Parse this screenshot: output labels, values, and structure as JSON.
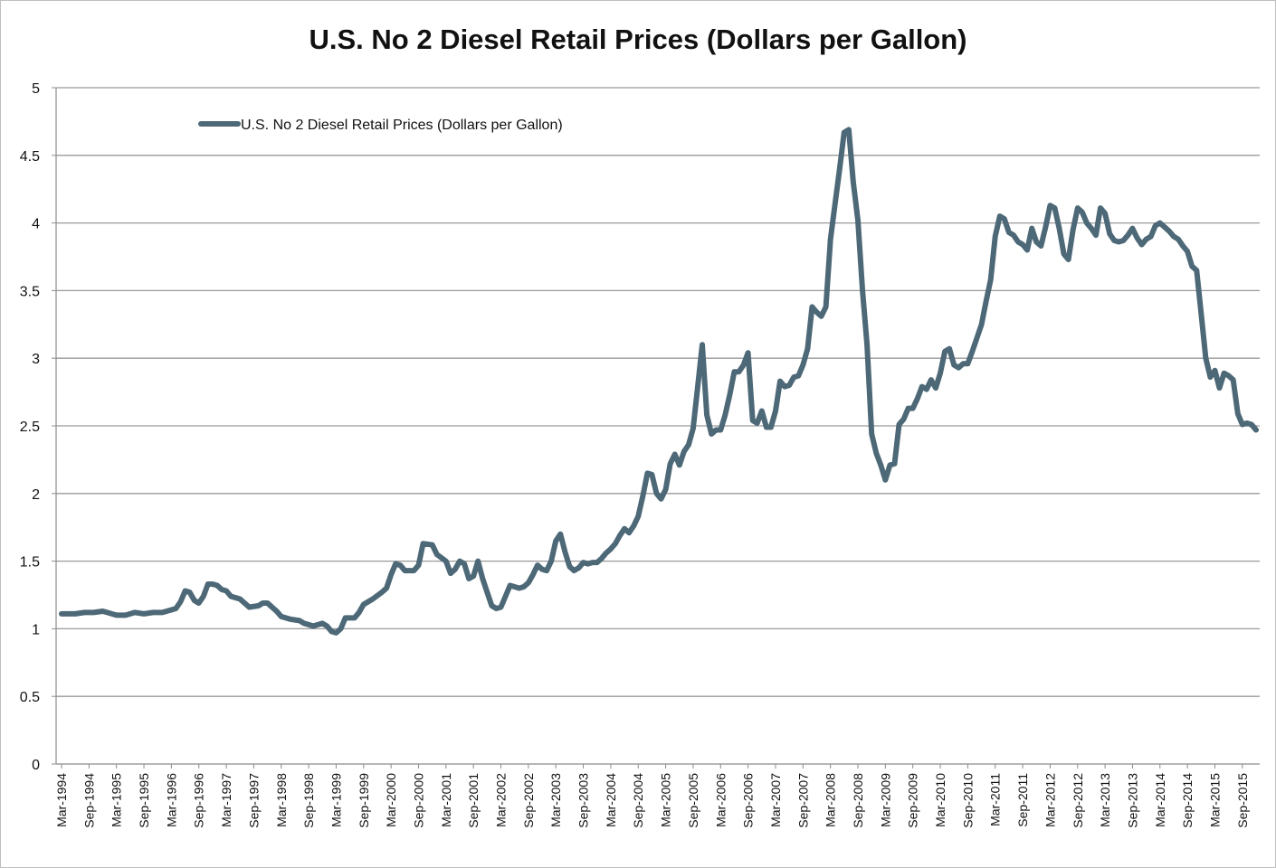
{
  "chart_data": {
    "type": "line",
    "title": "U.S. No 2 Diesel Retail Prices (Dollars per Gallon)",
    "xlabel": "",
    "ylabel": "",
    "ylim": [
      0,
      5
    ],
    "y_ticks": [
      "0",
      "0.5",
      "1",
      "1.5",
      "2",
      "2.5",
      "3",
      "3.5",
      "4",
      "4.5",
      "5"
    ],
    "x_range": [
      "1994-03",
      "2015-12"
    ],
    "x_ticks": [
      "Mar-1994",
      "Sep-1994",
      "Mar-1995",
      "Sep-1995",
      "Mar-1996",
      "Sep-1996",
      "Mar-1997",
      "Sep-1997",
      "Mar-1998",
      "Sep-1998",
      "Mar-1999",
      "Sep-1999",
      "Mar-2000",
      "Sep-2000",
      "Mar-2001",
      "Sep-2001",
      "Mar-2002",
      "Sep-2002",
      "Mar-2003",
      "Sep-2003",
      "Mar-2004",
      "Sep-2004",
      "Mar-2005",
      "Sep-2005",
      "Mar-2006",
      "Sep-2006",
      "Mar-2007",
      "Sep-2007",
      "Mar-2008",
      "Sep-2008",
      "Mar-2009",
      "Sep-2009",
      "Mar-2010",
      "Sep-2010",
      "Mar-2011",
      "Sep-2011",
      "Mar-2012",
      "Sep-2012",
      "Mar-2013",
      "Sep-2013",
      "Mar-2014",
      "Sep-2014",
      "Mar-2015",
      "Sep-2015"
    ],
    "grid": true,
    "legend_position": "top-left",
    "color": "#4d6877",
    "series": [
      {
        "name": "U.S. No 2 Diesel Retail Prices (Dollars per Gallon)",
        "points": [
          [
            "1994-03",
            1.11
          ],
          [
            "1994-06",
            1.11
          ],
          [
            "1994-08",
            1.12
          ],
          [
            "1994-10",
            1.12
          ],
          [
            "1994-12",
            1.13
          ],
          [
            "1995-01",
            1.12
          ],
          [
            "1995-03",
            1.1
          ],
          [
            "1995-05",
            1.1
          ],
          [
            "1995-07",
            1.12
          ],
          [
            "1995-09",
            1.11
          ],
          [
            "1995-11",
            1.12
          ],
          [
            "1996-01",
            1.12
          ],
          [
            "1996-03",
            1.14
          ],
          [
            "1996-04",
            1.15
          ],
          [
            "1996-05",
            1.2
          ],
          [
            "1996-06",
            1.28
          ],
          [
            "1996-07",
            1.27
          ],
          [
            "1996-08",
            1.21
          ],
          [
            "1996-09",
            1.19
          ],
          [
            "1996-10",
            1.24
          ],
          [
            "1996-11",
            1.33
          ],
          [
            "1996-12",
            1.33
          ],
          [
            "1997-01",
            1.32
          ],
          [
            "1997-02",
            1.29
          ],
          [
            "1997-03",
            1.28
          ],
          [
            "1997-04",
            1.24
          ],
          [
            "1997-06",
            1.22
          ],
          [
            "1997-08",
            1.16
          ],
          [
            "1997-10",
            1.17
          ],
          [
            "1997-11",
            1.19
          ],
          [
            "1997-12",
            1.19
          ],
          [
            "1998-01",
            1.16
          ],
          [
            "1998-02",
            1.13
          ],
          [
            "1998-03",
            1.09
          ],
          [
            "1998-05",
            1.07
          ],
          [
            "1998-07",
            1.06
          ],
          [
            "1998-08",
            1.04
          ],
          [
            "1998-10",
            1.02
          ],
          [
            "1998-12",
            1.04
          ],
          [
            "1999-01",
            1.02
          ],
          [
            "1999-02",
            0.98
          ],
          [
            "1999-03",
            0.97
          ],
          [
            "1999-04",
            1.0
          ],
          [
            "1999-05",
            1.08
          ],
          [
            "1999-07",
            1.08
          ],
          [
            "1999-08",
            1.12
          ],
          [
            "1999-09",
            1.18
          ],
          [
            "1999-11",
            1.22
          ],
          [
            "2000-01",
            1.27
          ],
          [
            "2000-02",
            1.3
          ],
          [
            "2000-03",
            1.4
          ],
          [
            "2000-04",
            1.48
          ],
          [
            "2000-05",
            1.47
          ],
          [
            "2000-06",
            1.43
          ],
          [
            "2000-08",
            1.43
          ],
          [
            "2000-09",
            1.47
          ],
          [
            "2000-10",
            1.63
          ],
          [
            "2000-12",
            1.62
          ],
          [
            "2001-01",
            1.55
          ],
          [
            "2001-03",
            1.5
          ],
          [
            "2001-04",
            1.41
          ],
          [
            "2001-05",
            1.44
          ],
          [
            "2001-06",
            1.5
          ],
          [
            "2001-07",
            1.48
          ],
          [
            "2001-08",
            1.37
          ],
          [
            "2001-09",
            1.39
          ],
          [
            "2001-10",
            1.5
          ],
          [
            "2001-11",
            1.37
          ],
          [
            "2001-12",
            1.27
          ],
          [
            "2002-01",
            1.17
          ],
          [
            "2002-02",
            1.15
          ],
          [
            "2002-03",
            1.16
          ],
          [
            "2002-04",
            1.24
          ],
          [
            "2002-05",
            1.32
          ],
          [
            "2002-07",
            1.3
          ],
          [
            "2002-08",
            1.31
          ],
          [
            "2002-09",
            1.34
          ],
          [
            "2002-10",
            1.4
          ],
          [
            "2002-11",
            1.47
          ],
          [
            "2002-12",
            1.44
          ],
          [
            "2003-01",
            1.43
          ],
          [
            "2003-02",
            1.5
          ],
          [
            "2003-03",
            1.65
          ],
          [
            "2003-04",
            1.7
          ],
          [
            "2003-05",
            1.57
          ],
          [
            "2003-06",
            1.46
          ],
          [
            "2003-07",
            1.43
          ],
          [
            "2003-08",
            1.45
          ],
          [
            "2003-09",
            1.49
          ],
          [
            "2003-10",
            1.48
          ],
          [
            "2003-11",
            1.49
          ],
          [
            "2003-12",
            1.49
          ],
          [
            "2004-01",
            1.52
          ],
          [
            "2004-02",
            1.56
          ],
          [
            "2004-03",
            1.59
          ],
          [
            "2004-04",
            1.63
          ],
          [
            "2004-05",
            1.69
          ],
          [
            "2004-06",
            1.74
          ],
          [
            "2004-07",
            1.71
          ],
          [
            "2004-08",
            1.76
          ],
          [
            "2004-09",
            1.83
          ],
          [
            "2004-10",
            1.98
          ],
          [
            "2004-11",
            2.15
          ],
          [
            "2004-12",
            2.14
          ],
          [
            "2005-01",
            2.0
          ],
          [
            "2005-02",
            1.96
          ],
          [
            "2005-03",
            2.03
          ],
          [
            "2005-04",
            2.22
          ],
          [
            "2005-05",
            2.29
          ],
          [
            "2005-06",
            2.21
          ],
          [
            "2005-07",
            2.31
          ],
          [
            "2005-08",
            2.36
          ],
          [
            "2005-09",
            2.48
          ],
          [
            "2005-10",
            2.79
          ],
          [
            "2005-11",
            3.1
          ],
          [
            "2005-12",
            2.58
          ],
          [
            "2006-01",
            2.44
          ],
          [
            "2006-02",
            2.47
          ],
          [
            "2006-03",
            2.47
          ],
          [
            "2006-04",
            2.58
          ],
          [
            "2006-05",
            2.73
          ],
          [
            "2006-06",
            2.9
          ],
          [
            "2006-07",
            2.9
          ],
          [
            "2006-08",
            2.95
          ],
          [
            "2006-09",
            3.04
          ],
          [
            "2006-10",
            2.54
          ],
          [
            "2006-11",
            2.52
          ],
          [
            "2006-12",
            2.61
          ],
          [
            "2007-01",
            2.49
          ],
          [
            "2007-02",
            2.49
          ],
          [
            "2007-03",
            2.61
          ],
          [
            "2007-04",
            2.83
          ],
          [
            "2007-05",
            2.79
          ],
          [
            "2007-06",
            2.8
          ],
          [
            "2007-07",
            2.86
          ],
          [
            "2007-08",
            2.87
          ],
          [
            "2007-09",
            2.95
          ],
          [
            "2007-10",
            3.07
          ],
          [
            "2007-11",
            3.38
          ],
          [
            "2007-12",
            3.34
          ],
          [
            "2008-01",
            3.31
          ],
          [
            "2008-02",
            3.38
          ],
          [
            "2008-03",
            3.88
          ],
          [
            "2008-04",
            4.14
          ],
          [
            "2008-05",
            4.4
          ],
          [
            "2008-06",
            4.67
          ],
          [
            "2008-07",
            4.69
          ],
          [
            "2008-08",
            4.3
          ],
          [
            "2008-09",
            4.02
          ],
          [
            "2008-10",
            3.5
          ],
          [
            "2008-11",
            3.1
          ],
          [
            "2008-12",
            2.44
          ],
          [
            "2009-01",
            2.3
          ],
          [
            "2009-02",
            2.21
          ],
          [
            "2009-03",
            2.1
          ],
          [
            "2009-04",
            2.21
          ],
          [
            "2009-05",
            2.22
          ],
          [
            "2009-06",
            2.51
          ],
          [
            "2009-07",
            2.55
          ],
          [
            "2009-08",
            2.63
          ],
          [
            "2009-09",
            2.63
          ],
          [
            "2009-10",
            2.7
          ],
          [
            "2009-11",
            2.79
          ],
          [
            "2009-12",
            2.77
          ],
          [
            "2010-01",
            2.84
          ],
          [
            "2010-02",
            2.78
          ],
          [
            "2010-03",
            2.89
          ],
          [
            "2010-04",
            3.05
          ],
          [
            "2010-05",
            3.07
          ],
          [
            "2010-06",
            2.95
          ],
          [
            "2010-07",
            2.93
          ],
          [
            "2010-08",
            2.96
          ],
          [
            "2010-09",
            2.96
          ],
          [
            "2010-10",
            3.05
          ],
          [
            "2010-11",
            3.15
          ],
          [
            "2010-12",
            3.25
          ],
          [
            "2011-01",
            3.42
          ],
          [
            "2011-02",
            3.58
          ],
          [
            "2011-03",
            3.9
          ],
          [
            "2011-04",
            4.05
          ],
          [
            "2011-05",
            4.03
          ],
          [
            "2011-06",
            3.93
          ],
          [
            "2011-07",
            3.91
          ],
          [
            "2011-08",
            3.86
          ],
          [
            "2011-09",
            3.84
          ],
          [
            "2011-10",
            3.8
          ],
          [
            "2011-11",
            3.96
          ],
          [
            "2011-12",
            3.86
          ],
          [
            "2012-01",
            3.83
          ],
          [
            "2012-02",
            3.97
          ],
          [
            "2012-03",
            4.13
          ],
          [
            "2012-04",
            4.11
          ],
          [
            "2012-05",
            3.96
          ],
          [
            "2012-06",
            3.77
          ],
          [
            "2012-07",
            3.73
          ],
          [
            "2012-08",
            3.95
          ],
          [
            "2012-09",
            4.11
          ],
          [
            "2012-10",
            4.08
          ],
          [
            "2012-11",
            4.0
          ],
          [
            "2012-12",
            3.96
          ],
          [
            "2013-01",
            3.91
          ],
          [
            "2013-02",
            4.11
          ],
          [
            "2013-03",
            4.07
          ],
          [
            "2013-04",
            3.92
          ],
          [
            "2013-05",
            3.87
          ],
          [
            "2013-06",
            3.86
          ],
          [
            "2013-07",
            3.87
          ],
          [
            "2013-08",
            3.91
          ],
          [
            "2013-09",
            3.96
          ],
          [
            "2013-10",
            3.89
          ],
          [
            "2013-11",
            3.84
          ],
          [
            "2013-12",
            3.88
          ],
          [
            "2014-01",
            3.9
          ],
          [
            "2014-02",
            3.98
          ],
          [
            "2014-03",
            4.0
          ],
          [
            "2014-04",
            3.97
          ],
          [
            "2014-05",
            3.94
          ],
          [
            "2014-06",
            3.9
          ],
          [
            "2014-07",
            3.88
          ],
          [
            "2014-08",
            3.83
          ],
          [
            "2014-09",
            3.79
          ],
          [
            "2014-10",
            3.68
          ],
          [
            "2014-11",
            3.65
          ],
          [
            "2014-12",
            3.33
          ],
          [
            "2015-01",
            3.0
          ],
          [
            "2015-02",
            2.86
          ],
          [
            "2015-03",
            2.91
          ],
          [
            "2015-04",
            2.78
          ],
          [
            "2015-05",
            2.89
          ],
          [
            "2015-06",
            2.87
          ],
          [
            "2015-07",
            2.84
          ],
          [
            "2015-08",
            2.59
          ],
          [
            "2015-09",
            2.51
          ],
          [
            "2015-10",
            2.52
          ],
          [
            "2015-11",
            2.51
          ],
          [
            "2015-12",
            2.47
          ]
        ]
      }
    ]
  }
}
